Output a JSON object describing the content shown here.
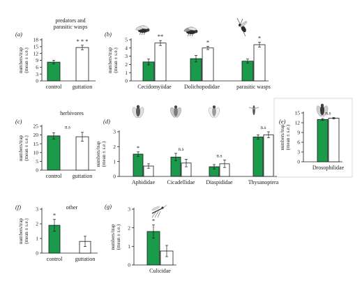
{
  "colors": {
    "control": "#1a9a4a",
    "guttation": "#ffffff",
    "stroke": "#1a1a1a",
    "group_predators": "#2aa6d9",
    "group_herbivores": "#e53030",
    "group_other": "#1a1a1a"
  },
  "group_labels": {
    "predators": "predators and\nparasitic wasps",
    "herbivores": "herbivores",
    "other": "other"
  },
  "icons": [
    "fly-icon",
    "fly-icon",
    "wasp-icon",
    "aphid-icon",
    "leafhopper-icon",
    "scale-insect-icon",
    "thrips-icon",
    "fruit-fly-icon",
    "mosquito-icon"
  ],
  "chart_data": [
    {
      "id": "a",
      "panel_label": "(a)",
      "type": "bar",
      "ylabel": [
        "numbers/trap",
        "(mean ± s.e.)"
      ],
      "ylim": [
        0,
        18
      ],
      "yticks": [
        0,
        3,
        6,
        9,
        12,
        15,
        18
      ],
      "categories": [
        "control",
        "guttation"
      ],
      "series": [
        {
          "values": [
            8.2,
            14.6
          ],
          "errors": [
            0.8,
            1.0
          ]
        }
      ],
      "annotations": [
        "",
        "* * *"
      ]
    },
    {
      "id": "b",
      "panel_label": "(b)",
      "type": "bar",
      "ylabel": [
        "numbers/trap",
        "(mean ± s.e.)"
      ],
      "ylim": [
        0,
        5
      ],
      "yticks": [
        0,
        1,
        2,
        3,
        4,
        5
      ],
      "categories": [
        "Cecidomyiidae",
        "Dolichopodidae",
        "parasitic wasps"
      ],
      "series": [
        {
          "name": "control",
          "values": [
            2.3,
            2.7,
            2.4
          ],
          "errors": [
            0.35,
            0.4,
            0.25
          ]
        },
        {
          "name": "guttation",
          "values": [
            4.6,
            4.0,
            4.4
          ],
          "errors": [
            0.3,
            0.2,
            0.3
          ]
        }
      ],
      "annotations": [
        "**",
        "*",
        "*"
      ]
    },
    {
      "id": "c",
      "panel_label": "(c)",
      "type": "bar",
      "ylabel": [
        "numbers/trap",
        "(mean ± s.e.)"
      ],
      "ylim": [
        0,
        25
      ],
      "yticks": [
        0,
        5,
        10,
        15,
        20,
        25
      ],
      "categories": [
        "control",
        "guttation"
      ],
      "series": [
        {
          "values": [
            19.5,
            19.0
          ],
          "errors": [
            1.8,
            2.5
          ]
        }
      ],
      "annotations": [
        "n.s",
        ""
      ]
    },
    {
      "id": "d",
      "panel_label": "(d)",
      "type": "bar",
      "ylabel": [
        "numbers/trap",
        "(mean ± s.e.)"
      ],
      "ylim": [
        0,
        3
      ],
      "yticks": [
        0,
        1,
        2,
        3
      ],
      "categories": [
        "Aphididae",
        "Cicadellidae",
        "Diaspididae",
        "Thysanoptera"
      ],
      "series": [
        {
          "name": "control",
          "values": [
            1.5,
            1.3,
            0.65,
            2.65
          ],
          "errors": [
            0.15,
            0.25,
            0.15,
            0.15
          ]
        },
        {
          "name": "guttation",
          "values": [
            0.7,
            0.9,
            0.85,
            2.8
          ],
          "errors": [
            0.15,
            0.25,
            0.25,
            0.2
          ]
        }
      ],
      "annotations": [
        "*",
        "n.s",
        "n.s",
        "n.s"
      ]
    },
    {
      "id": "e",
      "panel_label": "(e)",
      "type": "bar",
      "ylabel": [
        "numbers/trap",
        "(mean ± s.e.)"
      ],
      "ylim": [
        0,
        15
      ],
      "yticks": [
        0,
        3,
        6,
        9,
        12,
        15
      ],
      "categories": [
        "Drosophilidae"
      ],
      "series": [
        {
          "name": "control",
          "values": [
            13.0
          ],
          "errors": [
            0.3
          ]
        },
        {
          "name": "guttation",
          "values": [
            13.4
          ],
          "errors": [
            0.25
          ]
        }
      ],
      "annotations": [
        "n.s"
      ]
    },
    {
      "id": "f",
      "panel_label": "(f)",
      "type": "bar",
      "ylabel": [
        "numbers/trap",
        "(mean ± s.e.)"
      ],
      "ylim": [
        0,
        3
      ],
      "yticks": [
        0,
        1,
        2,
        3
      ],
      "categories": [
        "control",
        "guttation"
      ],
      "series": [
        {
          "values": [
            1.9,
            0.8
          ],
          "errors": [
            0.4,
            0.35
          ]
        }
      ],
      "annotations": [
        "*",
        ""
      ]
    },
    {
      "id": "g",
      "panel_label": "(g)",
      "type": "bar",
      "ylabel": [
        "numbers/trap",
        "(mean ± s.e.)"
      ],
      "ylim": [
        0,
        3
      ],
      "yticks": [
        0,
        1,
        2,
        3
      ],
      "categories": [
        "Culicidae"
      ],
      "series": [
        {
          "name": "control",
          "values": [
            1.8
          ],
          "errors": [
            0.35
          ]
        },
        {
          "name": "guttation",
          "values": [
            0.75
          ],
          "errors": [
            0.3
          ]
        }
      ],
      "annotations": [
        "*"
      ]
    }
  ]
}
